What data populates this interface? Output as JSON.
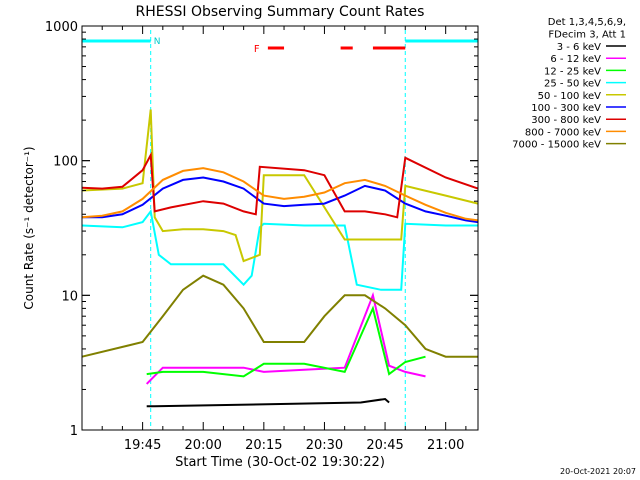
{
  "chart_data": {
    "type": "line",
    "title": "RHESSI Observing Summary Count Rates",
    "xlabel": "Start Time (30-Oct-02 19:30:22)",
    "ylabel": "Count Rate (s⁻¹ detector⁻¹)",
    "yscale": "log",
    "ylim": [
      1,
      1000
    ],
    "xlim": [
      "19:30",
      "21:08"
    ],
    "x_ticks": [
      "19:45",
      "20:00",
      "20:15",
      "20:30",
      "20:45",
      "21:00"
    ],
    "y_ticks": [
      "1",
      "10",
      "100",
      "1000"
    ],
    "legend_header": [
      "Det 1,3,4,5,6,9,",
      "FDecim 3, Att 1"
    ],
    "legend_position": "right",
    "footer": "20-Oct-2021 20:07",
    "flag_labels": {
      "night": "N",
      "flare": "F"
    },
    "night_intervals": [
      [
        "19:30",
        "19:47"
      ],
      [
        "20:50",
        "21:08"
      ]
    ],
    "flare_intervals": [
      [
        "20:16",
        "20:20"
      ],
      [
        "20:34",
        "20:37"
      ],
      [
        "20:42",
        "20:50"
      ]
    ],
    "series": [
      {
        "name": "3 - 6 keV",
        "color": "#000000",
        "x": [
          "19:46",
          "19:48",
          "20:39",
          "20:45",
          "20:46"
        ],
        "y": [
          1.5,
          1.5,
          1.6,
          1.7,
          1.6
        ]
      },
      {
        "name": "6 - 12 keV",
        "color": "#ff00ff",
        "x": [
          "19:46",
          "19:50",
          "20:00",
          "20:10",
          "20:15",
          "20:25",
          "20:35",
          "20:42",
          "20:46",
          "20:50",
          "20:55"
        ],
        "y": [
          2.2,
          2.9,
          2.9,
          2.9,
          2.7,
          2.8,
          2.9,
          10,
          3.0,
          2.7,
          2.5
        ]
      },
      {
        "name": "12 - 25 keV",
        "color": "#00ff00",
        "x": [
          "19:46",
          "19:50",
          "20:00",
          "20:10",
          "20:15",
          "20:25",
          "20:35",
          "20:42",
          "20:46",
          "20:50",
          "20:55"
        ],
        "y": [
          2.6,
          2.7,
          2.7,
          2.5,
          3.1,
          3.1,
          2.7,
          8,
          2.6,
          3.2,
          3.5
        ]
      },
      {
        "name": "25 - 50 keV",
        "color": "#00ffff",
        "x": [
          "19:30",
          "19:40",
          "19:45",
          "19:47",
          "19:49",
          "19:52",
          "20:00",
          "20:05",
          "20:10",
          "20:12",
          "20:14",
          "20:15",
          "20:25",
          "20:35",
          "20:38",
          "20:44",
          "20:49",
          "20:50",
          "21:00",
          "21:08"
        ],
        "y": [
          33,
          32,
          35,
          42,
          20,
          17,
          17,
          17,
          12,
          14,
          32,
          34,
          33,
          33,
          12,
          11,
          11,
          34,
          33,
          33
        ]
      },
      {
        "name": "50 - 100 keV",
        "color": "#c8c800",
        "x": [
          "19:30",
          "19:40",
          "19:45",
          "19:47",
          "19:48",
          "19:50",
          "19:55",
          "20:00",
          "20:05",
          "20:08",
          "20:10",
          "20:14",
          "20:15",
          "20:25",
          "20:35",
          "20:40",
          "20:45",
          "20:49",
          "20:50",
          "21:00",
          "21:08"
        ],
        "y": [
          60,
          62,
          68,
          240,
          38,
          30,
          31,
          31,
          30,
          28,
          18,
          20,
          78,
          78,
          26,
          26,
          26,
          26,
          65,
          55,
          48
        ]
      },
      {
        "name": "100 - 300 keV",
        "color": "#0000ff",
        "x": [
          "19:30",
          "19:35",
          "19:40",
          "19:45",
          "19:50",
          "19:55",
          "20:00",
          "20:05",
          "20:10",
          "20:15",
          "20:20",
          "20:25",
          "20:30",
          "20:35",
          "20:40",
          "20:45",
          "20:50",
          "20:55",
          "21:00",
          "21:05",
          "21:08"
        ],
        "y": [
          38,
          38,
          40,
          47,
          62,
          72,
          75,
          70,
          62,
          48,
          46,
          47,
          48,
          55,
          65,
          60,
          48,
          42,
          39,
          36,
          35
        ]
      },
      {
        "name": "300 - 800 keV",
        "color": "#dd0000",
        "x": [
          "19:30",
          "19:35",
          "19:40",
          "19:45",
          "19:47",
          "19:48",
          "19:52",
          "20:00",
          "20:05",
          "20:10",
          "20:13",
          "20:14",
          "20:25",
          "20:30",
          "20:35",
          "20:40",
          "20:45",
          "20:48",
          "20:50",
          "21:00",
          "21:08"
        ],
        "y": [
          63,
          62,
          64,
          85,
          110,
          42,
          45,
          50,
          48,
          42,
          40,
          90,
          85,
          78,
          42,
          42,
          40,
          38,
          105,
          75,
          62
        ]
      },
      {
        "name": "800 - 7000 keV",
        "color": "#ff8c00",
        "x": [
          "19:30",
          "19:35",
          "19:40",
          "19:45",
          "19:50",
          "19:55",
          "20:00",
          "20:05",
          "20:10",
          "20:15",
          "20:20",
          "20:25",
          "20:30",
          "20:35",
          "20:40",
          "20:45",
          "20:50",
          "20:55",
          "21:00",
          "21:05",
          "21:08"
        ],
        "y": [
          38,
          39,
          42,
          52,
          72,
          84,
          88,
          82,
          70,
          55,
          52,
          54,
          58,
          68,
          72,
          65,
          55,
          47,
          41,
          37,
          36
        ]
      },
      {
        "name": "7000 - 15000 keV",
        "color": "#808000",
        "x": [
          "19:30",
          "19:45",
          "19:50",
          "19:55",
          "20:00",
          "20:05",
          "20:10",
          "20:15",
          "20:25",
          "20:30",
          "20:35",
          "20:40",
          "20:45",
          "20:50",
          "20:55",
          "21:00",
          "21:08"
        ],
        "y": [
          3.5,
          4.5,
          7,
          11,
          14,
          12,
          8,
          4.5,
          4.5,
          7,
          10,
          10,
          8,
          6,
          4,
          3.5,
          3.5
        ]
      }
    ]
  }
}
